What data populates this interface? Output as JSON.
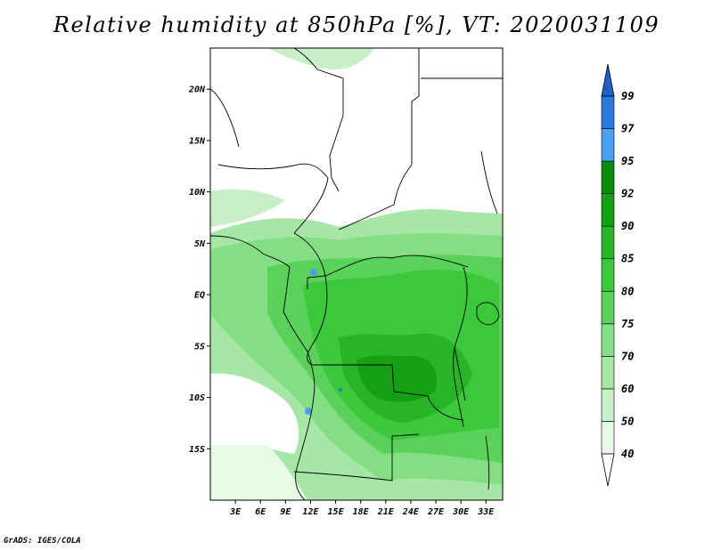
{
  "title": "Relative humidity at 850hPa [%], VT: 2020031109",
  "credit": "GrADS: IGES/COLA",
  "map": {
    "lon_range": [
      0,
      35
    ],
    "lat_range": [
      -20,
      24
    ],
    "lat_ticks": [
      {
        "value": 20,
        "label": "20N"
      },
      {
        "value": 15,
        "label": "15N"
      },
      {
        "value": 10,
        "label": "10N"
      },
      {
        "value": 5,
        "label": "5N"
      },
      {
        "value": 0,
        "label": "EQ"
      },
      {
        "value": -5,
        "label": "5S"
      },
      {
        "value": -10,
        "label": "10S"
      },
      {
        "value": -15,
        "label": "15S"
      }
    ],
    "lon_ticks": [
      {
        "value": 3,
        "label": "3E"
      },
      {
        "value": 6,
        "label": "6E"
      },
      {
        "value": 9,
        "label": "9E"
      },
      {
        "value": 12,
        "label": "12E"
      },
      {
        "value": 15,
        "label": "15E"
      },
      {
        "value": 18,
        "label": "18E"
      },
      {
        "value": 21,
        "label": "21E"
      },
      {
        "value": 24,
        "label": "24E"
      },
      {
        "value": 27,
        "label": "27E"
      },
      {
        "value": 30,
        "label": "30E"
      },
      {
        "value": 33,
        "label": "33E"
      }
    ]
  },
  "colorbar": {
    "levels": [
      {
        "label": "40",
        "color": "#ffffff"
      },
      {
        "label": "50",
        "color": "#e6fae6"
      },
      {
        "label": "60",
        "color": "#c8f0c8"
      },
      {
        "label": "70",
        "color": "#a6e6a6"
      },
      {
        "label": "75",
        "color": "#84de84"
      },
      {
        "label": "80",
        "color": "#5ad25a"
      },
      {
        "label": "85",
        "color": "#3cc83c"
      },
      {
        "label": "90",
        "color": "#28b428"
      },
      {
        "label": "92",
        "color": "#14a014"
      },
      {
        "label": "95",
        "color": "#0a8c0a"
      },
      {
        "label": "97",
        "color": "#4aa0f0"
      },
      {
        "label": "99",
        "color": "#2a78dc"
      }
    ],
    "top_arrow_color": "#1e5fc8"
  }
}
